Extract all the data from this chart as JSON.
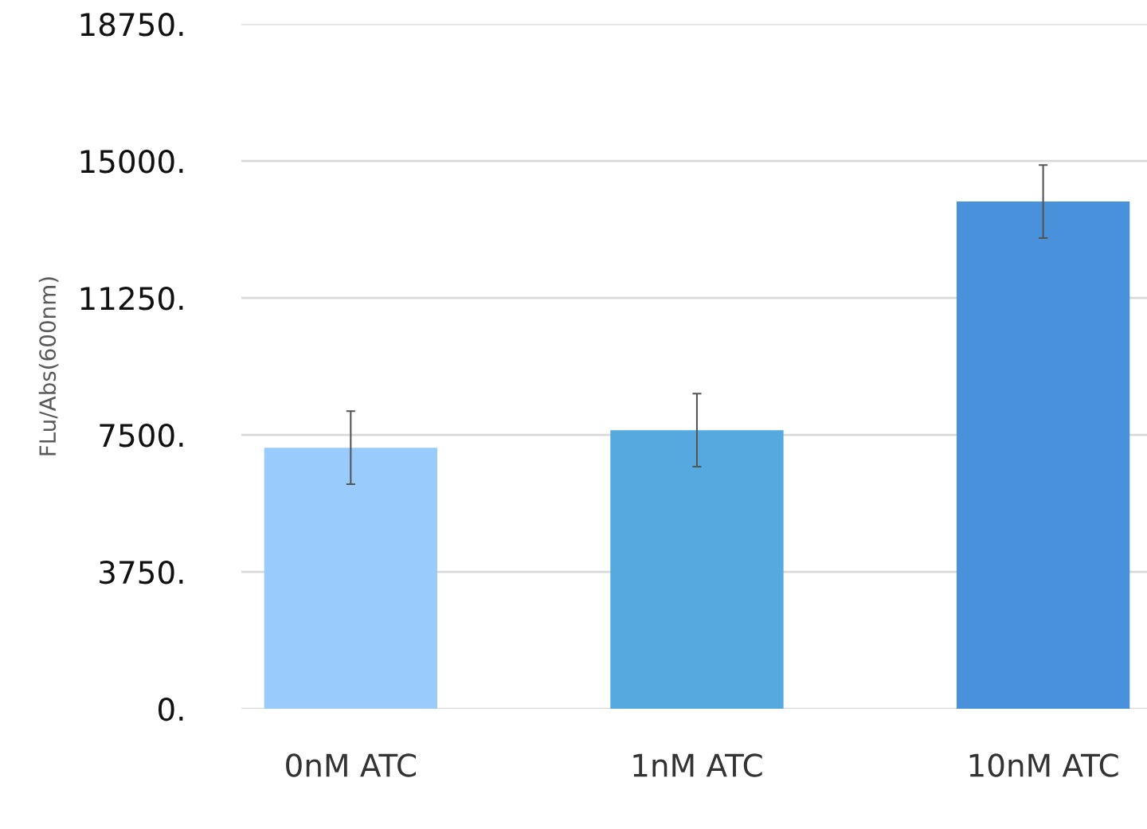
{
  "chart_data": {
    "type": "bar",
    "ylabel": "FLu/Abs(600nm)",
    "categories": [
      "0nM ATC",
      "1nM ATC",
      "10nM ATC"
    ],
    "values": [
      7150,
      7630,
      13890
    ],
    "errors": [
      1000,
      1000,
      1000
    ],
    "colors": [
      "#9acbfd",
      "#56a9df",
      "#4a91db"
    ],
    "ylim": [
      0,
      18750
    ],
    "yticks": [
      {
        "value": 0,
        "label": "0."
      },
      {
        "value": 3750,
        "label": "3750."
      },
      {
        "value": 7500,
        "label": "7500."
      },
      {
        "value": 11250,
        "label": "11250."
      },
      {
        "value": 15000,
        "label": "15000."
      },
      {
        "value": 18750,
        "label": "18750."
      }
    ],
    "grid": "y",
    "legend": false
  }
}
